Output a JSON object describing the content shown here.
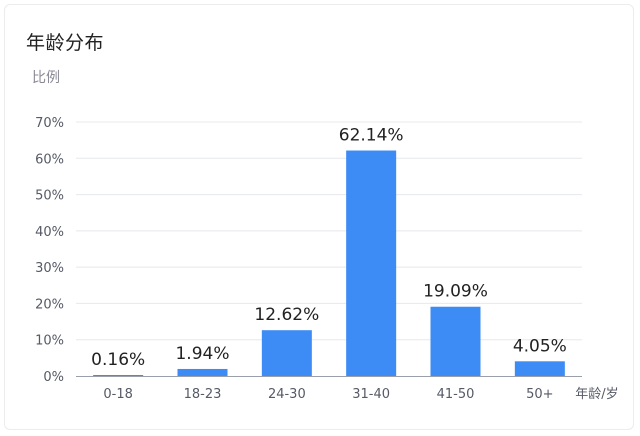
{
  "chart_data": {
    "type": "bar",
    "title": "年龄分布",
    "ylabel": "比例",
    "xlabel": "年龄/岁",
    "categories": [
      "0-18",
      "18-23",
      "24-30",
      "31-40",
      "41-50",
      "50+"
    ],
    "values": [
      0.16,
      1.94,
      12.62,
      62.14,
      19.09,
      4.05
    ],
    "data_labels": [
      "0.16%",
      "1.94%",
      "12.62%",
      "62.14%",
      "19.09%",
      "4.05%"
    ],
    "ylim": [
      0,
      70
    ],
    "yticks": [
      "0%",
      "10%",
      "20%",
      "30%",
      "40%",
      "50%",
      "60%",
      "70%"
    ],
    "grid": true,
    "bar_color": "#3d8bf5",
    "axis_color": "#9aa0aa",
    "grid_color": "#e6e8ee"
  }
}
